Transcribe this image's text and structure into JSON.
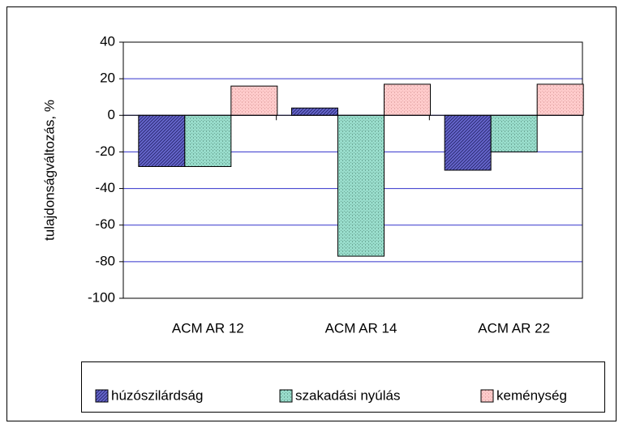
{
  "chart_data": {
    "type": "bar",
    "ylabel": "tulajdonságváltozás, %",
    "categories": [
      "ACM AR 12",
      "ACM AR 14",
      "ACM AR 22"
    ],
    "series": [
      {
        "name": "húzószilárdság",
        "color": "#6666cc",
        "values": [
          -28,
          4,
          -30
        ]
      },
      {
        "name": "szakadási nyúlás",
        "color": "#99ddcc",
        "values": [
          -28,
          -77,
          -20
        ]
      },
      {
        "name": "keménység",
        "color": "#ffcccc",
        "values": [
          16,
          17,
          17
        ]
      }
    ],
    "ylim": [
      -100,
      40
    ],
    "yticks": [
      -100,
      -80,
      -60,
      -40,
      -20,
      0,
      20,
      40
    ],
    "grid": true,
    "legend": "bottom"
  }
}
